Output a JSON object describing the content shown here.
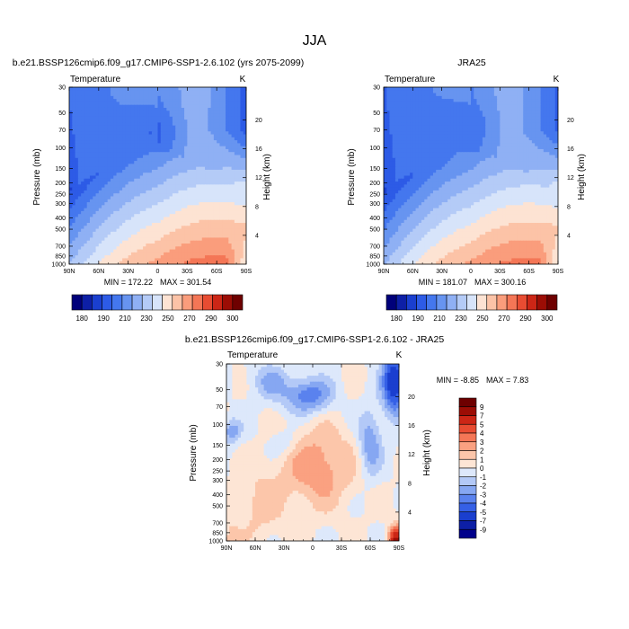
{
  "figure": {
    "title": "JJA",
    "axis_labels": {
      "pressure": "Pressure (mb)",
      "height": "Height (km)",
      "field": "Temperature",
      "units": "K"
    }
  },
  "chart_data": [
    {
      "type": "heatmap",
      "title": "b.e21.BSSP126cmip6.f09_g17.CMIP6-SSP1-2.6.102 (yrs 2075-2099)",
      "field_label": "Temperature",
      "units": "K",
      "xlabel": "",
      "ylabel": "Pressure (mb)",
      "y2label": "Height (km)",
      "x_ticks": [
        "90N",
        "60N",
        "30N",
        "0",
        "30S",
        "60S",
        "90S"
      ],
      "x_range": [
        90,
        -90
      ],
      "y_ticks": [
        30,
        50,
        70,
        100,
        150,
        200,
        250,
        300,
        400,
        500,
        700,
        850,
        1000
      ],
      "y_range": [
        30,
        1000
      ],
      "y2_ticks": [
        4,
        8,
        12,
        16,
        20
      ],
      "min_label": "MIN = 172.22",
      "max_label": "MAX = 301.54",
      "min": 172.22,
      "max": 301.54,
      "field_model": {
        "kind": "abs",
        "trop": 0,
        "polar": 1.0,
        "surf": 300.0
      }
    },
    {
      "type": "heatmap",
      "title": "JRA25",
      "field_label": "Temperature",
      "units": "K",
      "xlabel": "",
      "ylabel": "Pressure (mb)",
      "y2label": "Height (km)",
      "x_ticks": [
        "90N",
        "60N",
        "30N",
        "0",
        "30S",
        "60S",
        "90S"
      ],
      "x_range": [
        90,
        -90
      ],
      "y_ticks": [
        30,
        50,
        70,
        100,
        150,
        200,
        250,
        300,
        400,
        500,
        700,
        850,
        1000
      ],
      "y_range": [
        30,
        1000
      ],
      "y2_ticks": [
        4,
        8,
        12,
        16,
        20
      ],
      "min_label": "MIN = 181.07",
      "max_label": "MAX = 300.16",
      "min": 181.07,
      "max": 300.16,
      "field_model": {
        "kind": "abs",
        "trop": 6,
        "polar": 0.9,
        "surf": 299.0
      }
    },
    {
      "type": "heatmap",
      "title": "b.e21.BSSP126cmip6.f09_g17.CMIP6-SSP1-2.6.102 - JRA25",
      "field_label": "Temperature",
      "units": "K",
      "xlabel": "",
      "ylabel": "Pressure (mb)",
      "y2label": "Height (km)",
      "x_ticks": [
        "90N",
        "60N",
        "30N",
        "0",
        "30S",
        "60S",
        "90S"
      ],
      "x_range": [
        90,
        -90
      ],
      "y_ticks": [
        30,
        50,
        70,
        100,
        150,
        200,
        250,
        300,
        400,
        500,
        700,
        850,
        1000
      ],
      "y_range": [
        30,
        1000
      ],
      "y2_ticks": [
        4,
        8,
        12,
        16,
        20
      ],
      "min_label": "MIN =  -8.85",
      "max_label": "MAX =   7.83",
      "min": -8.85,
      "max": 7.83,
      "field_model": {
        "kind": "diff"
      }
    }
  ],
  "colorbars": {
    "absolute": {
      "levels": [
        180,
        190,
        200,
        210,
        220,
        230,
        240,
        250,
        260,
        270,
        280,
        290,
        300
      ],
      "labels": [
        "180",
        "190",
        "210",
        "230",
        "250",
        "270",
        "290",
        "300"
      ],
      "colors": [
        "#00007a",
        "#0d1fa6",
        "#1a3fcf",
        "#2d5be6",
        "#4477ee",
        "#6794f0",
        "#8fb0f4",
        "#b4cbf7",
        "#d7e4fa",
        "#fde3d3",
        "#fcc3a7",
        "#fa9d7c",
        "#f47656",
        "#e84c32",
        "#cc2616",
        "#9c0d05",
        "#6e0000"
      ]
    },
    "difference": {
      "levels": [
        -9,
        -7,
        -5,
        -4,
        -3,
        -2,
        -1,
        0,
        1,
        2,
        3,
        4,
        5,
        7,
        9
      ],
      "labels": [
        "9",
        "7",
        "5",
        "4",
        "3",
        "2",
        "1",
        "0",
        "-1",
        "-2",
        "-3",
        "-4",
        "-5",
        "-7",
        "-9"
      ],
      "colors": [
        "#00008b",
        "#0d1fa6",
        "#1a3fcf",
        "#3560e6",
        "#5a82ee",
        "#86a7f2",
        "#b3c9f7",
        "#dde8fb",
        "#fde5d5",
        "#fcc6aa",
        "#faa181",
        "#f47656",
        "#e84c32",
        "#cc2616",
        "#9c0d05",
        "#6e0000"
      ]
    }
  }
}
